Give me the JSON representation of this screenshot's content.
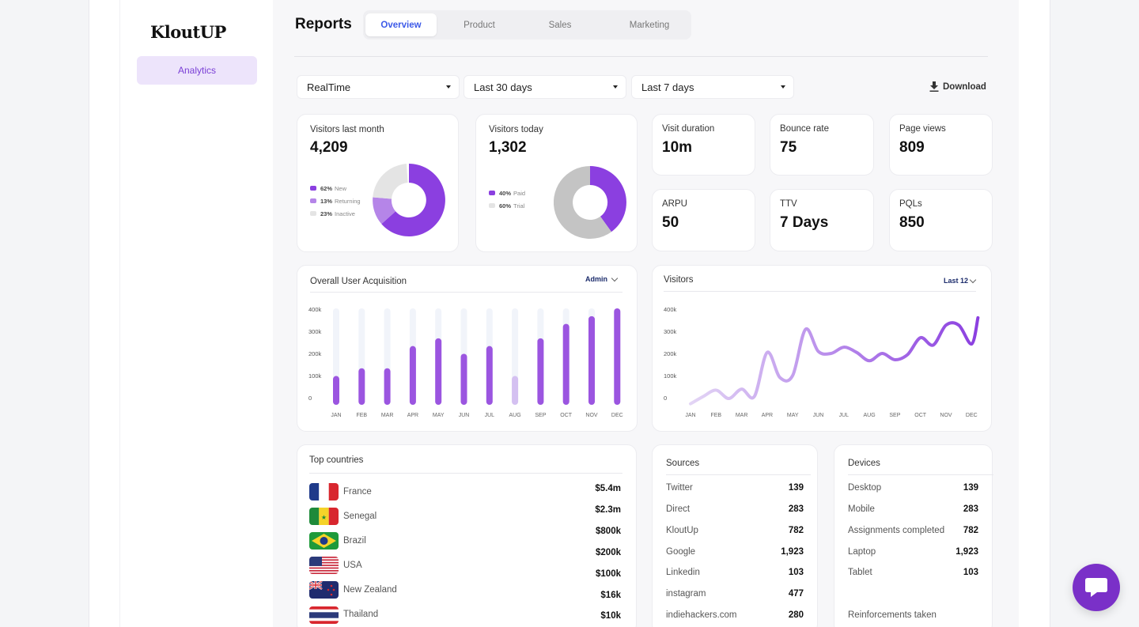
{
  "app": {
    "logo": "KloutUP"
  },
  "sidebar": {
    "items": [
      {
        "label": "Analytics"
      }
    ]
  },
  "header": {
    "title": "Reports",
    "tabs": [
      {
        "label": "Overview"
      },
      {
        "label": "Product"
      },
      {
        "label": "Sales"
      },
      {
        "label": "Marketing"
      }
    ],
    "active_tab": "Overview"
  },
  "filters": [
    {
      "value": "RealTime"
    },
    {
      "value": "Last 30 days"
    },
    {
      "value": "Last 7 days"
    }
  ],
  "download_label": "Download",
  "visitors_last_month": {
    "label": "Visitors last month",
    "value": "4,209",
    "legend": [
      {
        "pct": "62%",
        "name": "New",
        "color": "#8b3fe0"
      },
      {
        "pct": "13%",
        "name": "Returning",
        "color": "#b585e8"
      },
      {
        "pct": "23%",
        "name": "Inactive",
        "color": "#e4e4e4"
      }
    ]
  },
  "visitors_today": {
    "label": "Visitors today",
    "value": "1,302",
    "legend": [
      {
        "pct": "40%",
        "name": "Paid",
        "color": "#8b3fe0"
      },
      {
        "pct": "60%",
        "name": "Trial",
        "color": "#e4e4e4"
      }
    ]
  },
  "stats": [
    {
      "label": "Visit duration",
      "value": "10m"
    },
    {
      "label": "Bounce rate",
      "value": "75"
    },
    {
      "label": "Page views",
      "value": "809"
    },
    {
      "label": "ARPU",
      "value": "50"
    },
    {
      "label": "TTV",
      "value": "7 Days"
    },
    {
      "label": "PQLs",
      "value": "850"
    }
  ],
  "acquisition": {
    "title": "Overall User Acquisition",
    "filter": "Admin"
  },
  "visitors_chart": {
    "title": "Visitors",
    "filter": "Last 12"
  },
  "chart_data": [
    {
      "type": "bar",
      "title": "Overall User Acquisition",
      "categories": [
        "JAN",
        "FEB",
        "MAR",
        "APR",
        "MAY",
        "JUN",
        "JUL",
        "AUG",
        "SEP",
        "OCT",
        "NOV",
        "DEC"
      ],
      "values": [
        130000,
        165000,
        165000,
        265000,
        300000,
        230000,
        265000,
        130000,
        300000,
        365000,
        400000,
        435000
      ],
      "highlight_light": [
        7
      ],
      "yticks": [
        "400k",
        "300k",
        "200k",
        "100k",
        "0"
      ],
      "ylim": [
        0,
        435000
      ],
      "colors": {
        "bar": "#9b55e0",
        "bar_light": "#d4c0f1",
        "track": "#f1f4fa"
      }
    },
    {
      "type": "line",
      "title": "Visitors",
      "categories": [
        "JAN",
        "FEB",
        "MAR",
        "APR",
        "MAY",
        "JUN",
        "JUL",
        "AUG",
        "SEP",
        "OCT",
        "NOV",
        "DEC"
      ],
      "x": [
        0,
        0.5,
        1,
        1.5,
        2,
        2.5,
        3,
        3.5,
        4,
        4.5,
        5,
        5.5,
        6,
        6.5,
        7,
        7.5,
        8,
        8.5,
        9,
        9.5,
        10,
        10.5,
        11,
        11.25
      ],
      "y": [
        5000,
        40000,
        70000,
        30000,
        75000,
        40000,
        250000,
        130000,
        140000,
        360000,
        255000,
        245000,
        275000,
        250000,
        210000,
        245000,
        215000,
        240000,
        320000,
        285000,
        380000,
        380000,
        290000,
        415000
      ],
      "yticks": [
        "400k",
        "300k",
        "200k",
        "100k",
        "0"
      ],
      "ylim": [
        0,
        460000
      ],
      "colors": {
        "start": "#e3d5f5",
        "end": "#8b3fe0"
      }
    }
  ],
  "top_countries": {
    "title": "Top countries",
    "rows": [
      {
        "name": "France",
        "value": "$5.4m"
      },
      {
        "name": "Senegal",
        "value": "$2.3m"
      },
      {
        "name": "Brazil",
        "value": "$800k"
      },
      {
        "name": "USA",
        "value": "$200k"
      },
      {
        "name": "New Zealand",
        "value": "$100k"
      },
      {
        "name": "Thailand",
        "value": "$16k"
      },
      {
        "name": "",
        "value": "$10k"
      }
    ]
  },
  "sources": {
    "title": "Sources",
    "rows": [
      {
        "name": "Twitter",
        "value": "139"
      },
      {
        "name": "Direct",
        "value": "283"
      },
      {
        "name": "KloutUp",
        "value": "782"
      },
      {
        "name": "Google",
        "value": "1,923"
      },
      {
        "name": "Linkedin",
        "value": "103"
      },
      {
        "name": "instagram",
        "value": "477"
      },
      {
        "name": "indiehackers.com",
        "value": "280"
      }
    ]
  },
  "devices": {
    "title": "Devices",
    "rows": [
      {
        "name": "Desktop",
        "value": "139"
      },
      {
        "name": "Mobile",
        "value": "283"
      },
      {
        "name": "Assignments completed",
        "value": "782"
      },
      {
        "name": "Laptop",
        "value": "1,923"
      },
      {
        "name": "Tablet",
        "value": "103"
      }
    ],
    "footer": "Reinforcements taken"
  }
}
